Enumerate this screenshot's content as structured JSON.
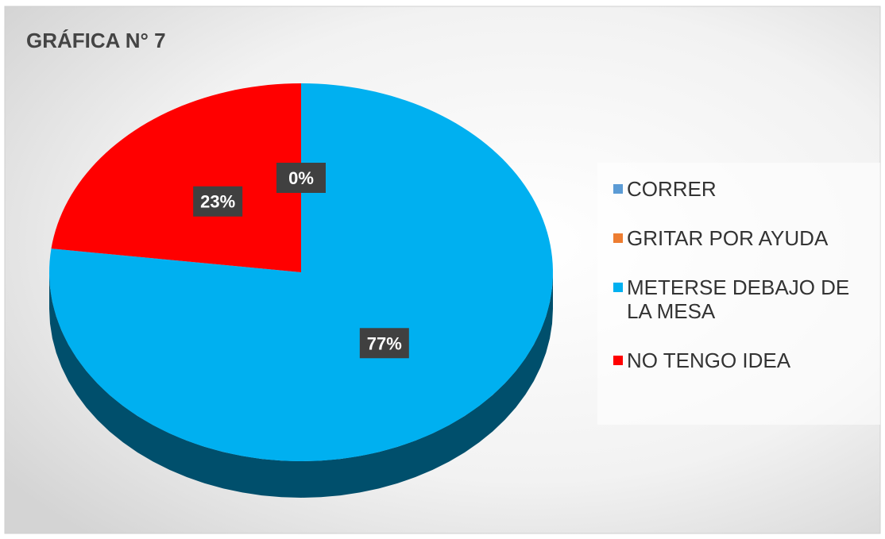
{
  "chart_data": {
    "type": "pie",
    "title": "GRÁFICA N° 7",
    "categories": [
      "CORRER",
      "GRITAR POR AYUDA",
      "METERSE DEBAJO DE LA MESA",
      "NO TENGO IDEA"
    ],
    "values": [
      0,
      0,
      77,
      23
    ],
    "value_labels": [
      "0%",
      "0%",
      "77%",
      "23%"
    ],
    "colors": [
      "#5b9bd5",
      "#ed7d31",
      "#00b0f0",
      "#ff0000"
    ],
    "legend": "right"
  }
}
